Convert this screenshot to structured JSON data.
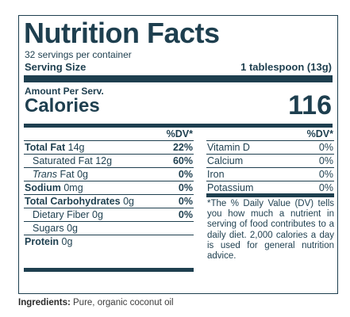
{
  "label": {
    "title": "Nutrition Facts",
    "servings": "32 servings per container",
    "serving_size_label": "Serving Size",
    "serving_size_value": "1 tablespoon (13g)",
    "amount_per": "Amount Per Serv.",
    "calories_label": "Calories",
    "calories_value": "116",
    "dv_header": "%DV*",
    "nutrients": [
      {
        "name": "Total Fat",
        "amount": "14g",
        "dv": "22%"
      },
      {
        "name": "Saturated Fat",
        "amount": "12g",
        "dv": "60%"
      },
      {
        "name": "Trans",
        "name_suffix": "Fat",
        "amount": "0g",
        "dv": "0%"
      },
      {
        "name": "Sodium",
        "amount": "0mg",
        "dv": "0%"
      },
      {
        "name": "Total Carbohydrates",
        "amount": "0g",
        "dv": "0%"
      },
      {
        "name": "Dietary Fiber",
        "amount": "0g",
        "dv": "0%"
      },
      {
        "name": "Sugars",
        "amount": "0g",
        "dv": ""
      },
      {
        "name": "Protein",
        "amount": "0g",
        "dv": ""
      }
    ],
    "minerals": [
      {
        "name": "Vitamin D",
        "dv": "0%"
      },
      {
        "name": "Calcium",
        "dv": "0%"
      },
      {
        "name": "Iron",
        "dv": "0%"
      },
      {
        "name": "Potassium",
        "dv": "0%"
      }
    ],
    "footnote": "*The % Daily Value (DV) tells you how much a nutrient in serving of food contributes to a daily diet. 2,000 calories a day is used for general nutrition advice."
  },
  "ingredients": {
    "label": "Ingredients:",
    "text": " Pure, organic coconut oil"
  },
  "colors": {
    "label_ink": "#1e3f4f",
    "ingredients_text": "#3c3c3c"
  }
}
